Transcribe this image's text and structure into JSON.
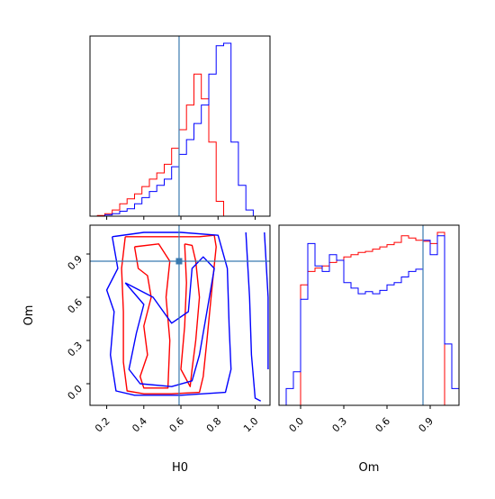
{
  "chart_data": {
    "type": "corner",
    "parameters": [
      "H0",
      "Om"
    ],
    "truths": {
      "H0": 0.59,
      "Om": 0.85
    },
    "colors": {
      "series_a": "#ff0000",
      "series_b": "#0000ff",
      "truth": "#3a7ab0"
    },
    "axis_labels": {
      "x_left": "H0",
      "x_right": "Om",
      "y_left": "Om"
    },
    "h0_ticks": [
      "0.2",
      "0.4",
      "0.6",
      "0.8",
      "1.0"
    ],
    "om_ticks": [
      "0.0",
      "0.3",
      "0.6",
      "0.9"
    ],
    "h0_range": [
      0.11,
      1.08
    ],
    "om_range": [
      -0.15,
      1.1
    ],
    "hist_h0": {
      "bins": [
        0.15,
        0.19,
        0.23,
        0.27,
        0.31,
        0.35,
        0.39,
        0.43,
        0.47,
        0.51,
        0.55,
        0.59,
        0.63,
        0.67,
        0.71,
        0.75,
        0.79,
        0.83,
        0.87,
        0.91,
        0.95,
        0.99,
        1.03
      ],
      "series": [
        {
          "color": "red",
          "values": [
            0.5,
            2,
            5,
            10,
            14,
            18,
            24,
            30,
            35,
            42,
            55,
            70,
            90,
            115,
            95,
            60,
            12,
            0,
            0,
            0,
            0,
            0
          ]
        },
        {
          "color": "blue",
          "values": [
            0,
            1,
            2,
            4,
            6,
            10,
            15,
            20,
            25,
            30,
            40,
            50,
            62,
            75,
            90,
            115,
            138,
            140,
            60,
            25,
            5,
            0
          ]
        }
      ]
    },
    "hist_om": {
      "bins": [
        -0.1,
        -0.05,
        0.0,
        0.05,
        0.1,
        0.15,
        0.2,
        0.25,
        0.3,
        0.35,
        0.4,
        0.45,
        0.5,
        0.55,
        0.6,
        0.65,
        0.7,
        0.75,
        0.8,
        0.85,
        0.9,
        0.95,
        1.0,
        1.05,
        1.1
      ],
      "series": [
        {
          "color": "red",
          "values": [
            0,
            0,
            108,
            120,
            123,
            125,
            128,
            130,
            133,
            135,
            137,
            138,
            140,
            142,
            144,
            146,
            152,
            150,
            148,
            147,
            145,
            155,
            0,
            0
          ]
        },
        {
          "color": "blue",
          "values": [
            15,
            30,
            95,
            145,
            125,
            120,
            135,
            130,
            110,
            105,
            100,
            102,
            100,
            103,
            108,
            110,
            115,
            120,
            122,
            148,
            135,
            152,
            55,
            15
          ]
        }
      ]
    },
    "contours_2d": [
      {
        "color": "red",
        "lines": [
          [
            [
              0.3,
              1.02
            ],
            [
              0.46,
              1.02
            ],
            [
              0.6,
              1.02
            ],
            [
              0.7,
              1.02
            ],
            [
              0.78,
              1.03
            ],
            [
              0.79,
              0.95
            ],
            [
              0.77,
              0.7
            ],
            [
              0.74,
              0.3
            ],
            [
              0.72,
              0.05
            ],
            [
              0.7,
              -0.06
            ],
            [
              0.55,
              -0.07
            ],
            [
              0.4,
              -0.07
            ],
            [
              0.31,
              -0.05
            ],
            [
              0.29,
              0.15
            ],
            [
              0.29,
              0.5
            ],
            [
              0.28,
              0.8
            ],
            [
              0.3,
              1.02
            ]
          ],
          [
            [
              0.35,
              0.95
            ],
            [
              0.37,
              0.8
            ],
            [
              0.42,
              0.75
            ],
            [
              0.44,
              0.6
            ],
            [
              0.4,
              0.4
            ],
            [
              0.42,
              0.2
            ],
            [
              0.38,
              0.05
            ],
            [
              0.4,
              -0.03
            ],
            [
              0.53,
              -0.03
            ],
            [
              0.54,
              0.3
            ],
            [
              0.52,
              0.6
            ],
            [
              0.54,
              0.85
            ],
            [
              0.48,
              0.97
            ],
            [
              0.35,
              0.95
            ]
          ],
          [
            [
              0.62,
              0.97
            ],
            [
              0.66,
              0.96
            ],
            [
              0.68,
              0.85
            ],
            [
              0.7,
              0.6
            ],
            [
              0.68,
              0.3
            ],
            [
              0.66,
              0.1
            ],
            [
              0.65,
              -0.02
            ],
            [
              0.6,
              0.1
            ],
            [
              0.62,
              0.4
            ],
            [
              0.63,
              0.7
            ],
            [
              0.62,
              0.97
            ]
          ]
        ]
      },
      {
        "color": "blue",
        "lines": [
          [
            [
              0.23,
              1.02
            ],
            [
              0.4,
              1.05
            ],
            [
              0.6,
              1.05
            ],
            [
              0.8,
              1.03
            ],
            [
              0.85,
              0.8
            ],
            [
              0.86,
              0.4
            ],
            [
              0.87,
              0.1
            ],
            [
              0.84,
              -0.06
            ],
            [
              0.6,
              -0.08
            ],
            [
              0.35,
              -0.08
            ],
            [
              0.25,
              -0.05
            ],
            [
              0.22,
              0.2
            ],
            [
              0.24,
              0.5
            ],
            [
              0.2,
              0.65
            ],
            [
              0.26,
              0.8
            ],
            [
              0.23,
              1.02
            ]
          ],
          [
            [
              0.3,
              0.7
            ],
            [
              0.4,
              0.55
            ],
            [
              0.36,
              0.35
            ],
            [
              0.32,
              0.1
            ],
            [
              0.38,
              0.0
            ],
            [
              0.55,
              -0.02
            ],
            [
              0.66,
              0.02
            ],
            [
              0.7,
              0.2
            ],
            [
              0.74,
              0.5
            ],
            [
              0.78,
              0.8
            ],
            [
              0.72,
              0.88
            ],
            [
              0.66,
              0.8
            ],
            [
              0.64,
              0.5
            ],
            [
              0.55,
              0.42
            ],
            [
              0.45,
              0.6
            ],
            [
              0.3,
              0.7
            ]
          ],
          [
            [
              0.95,
              1.05
            ],
            [
              0.97,
              0.6
            ],
            [
              0.98,
              0.2
            ],
            [
              1.0,
              -0.1
            ],
            [
              1.03,
              -0.12
            ]
          ],
          [
            [
              1.05,
              1.05
            ],
            [
              1.07,
              0.6
            ],
            [
              1.07,
              0.1
            ]
          ]
        ]
      }
    ]
  }
}
